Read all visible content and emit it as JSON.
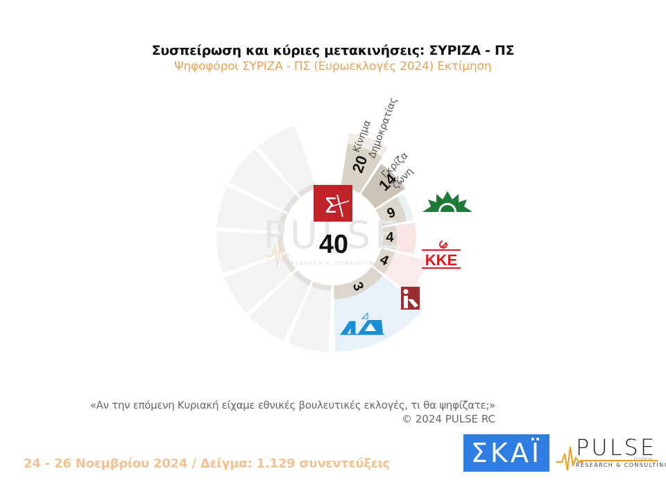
{
  "header": {
    "title": "Συσπείρωση και κύριες μετακινήσεις:  ΣΥΡΙΖΑ - ΠΣ",
    "subtitle": "Ψηφοφόροι ΣΥΡΙΖΑ - ΠΣ  (Ευρωεκλογές 2024)  Εκτίμηση"
  },
  "chart_data": {
    "type": "pie",
    "subtype": "radial-segment",
    "title": "Συσπείρωση και κύριες μετακινήσεις:  ΣΥΡΙΖΑ - ΠΣ",
    "subtitle": "Ψηφοφόροι ΣΥΡΙΖΑ - ΠΣ  (Ευρωεκλογές 2024)  Εκτίμηση",
    "center": {
      "label": "ΣΥΡΙΖΑ - ΠΣ",
      "value": 40,
      "logo": "syriza-logo"
    },
    "unit": "%",
    "categories": [
      "Κίνημα Δημοκρατίας",
      "Γκρίζα ζώνη",
      "ΠΑΣΟΚ",
      "ΚΚΕ",
      "Πλεύση Ελευθερίας",
      "ΝΔ"
    ],
    "values": [
      20,
      14,
      9,
      4,
      4,
      3
    ],
    "segments": [
      {
        "label": "Κίνημα Δημοκρατίας",
        "label_lines": [
          "Κίνημα",
          "Δημοκρατίας"
        ],
        "value": 20,
        "logo": "text",
        "band_color": "#d9d2c7",
        "fill_color": "#f1ede6"
      },
      {
        "label": "Γκρίζα ζώνη",
        "label_lines": [
          "Γκρίζα",
          "ζώνη"
        ],
        "value": 14,
        "logo": "text",
        "band_color": "#cbc3b6",
        "fill_color": "#f2f2f2"
      },
      {
        "label": "ΠΑΣΟΚ",
        "value": 9,
        "logo": "pasok-sun-logo",
        "band_color": "#dcd6cc",
        "fill_color": "#eaf2f4"
      },
      {
        "label": "ΚΚΕ",
        "value": 4,
        "logo": "kke-logo",
        "band_color": "#dcd6cc",
        "fill_color": "#f8e6e6"
      },
      {
        "label": "Πλεύση Ελευθερίας",
        "value": 4,
        "logo": "plefsi-logo",
        "band_color": "#dcd6cc",
        "fill_color": "#f9ebea"
      },
      {
        "label": "ΝΔ",
        "value": 3,
        "logo": "nd-logo",
        "band_color": "#dcd6cc",
        "fill_color": "#e8f0fa"
      }
    ],
    "remainder_segments": 7,
    "remainder_color": "#f3f3f3",
    "colors": {
      "syriza_red": "#c0222a",
      "pasok_green": "#1f7a3a",
      "kke_red": "#e3131b",
      "nd_blue": "#1a8fd6",
      "plefsi_red": "#9b2f2f"
    }
  },
  "footer": {
    "question": "«Αν την επόμενη Κυριακή είχαμε εθνικές βουλευτικές εκλογές, τι θα ψηφίζατε;»",
    "copyright": "©  2024  PULSE RC",
    "date_sample": "24 - 26 Νοεμβρίου 2024  /  Δείγμα:  1.129 συνεντεύξεις"
  },
  "logos": {
    "skai": "ΣΚΑΪ",
    "pulse": "PULSE",
    "pulse_sub": "RESEARCH & CONSULTING",
    "pulse_kosmon": "KOSMON",
    "watermark": "PULSE",
    "watermark_sub": "RESEARCH & CONSULTING"
  }
}
